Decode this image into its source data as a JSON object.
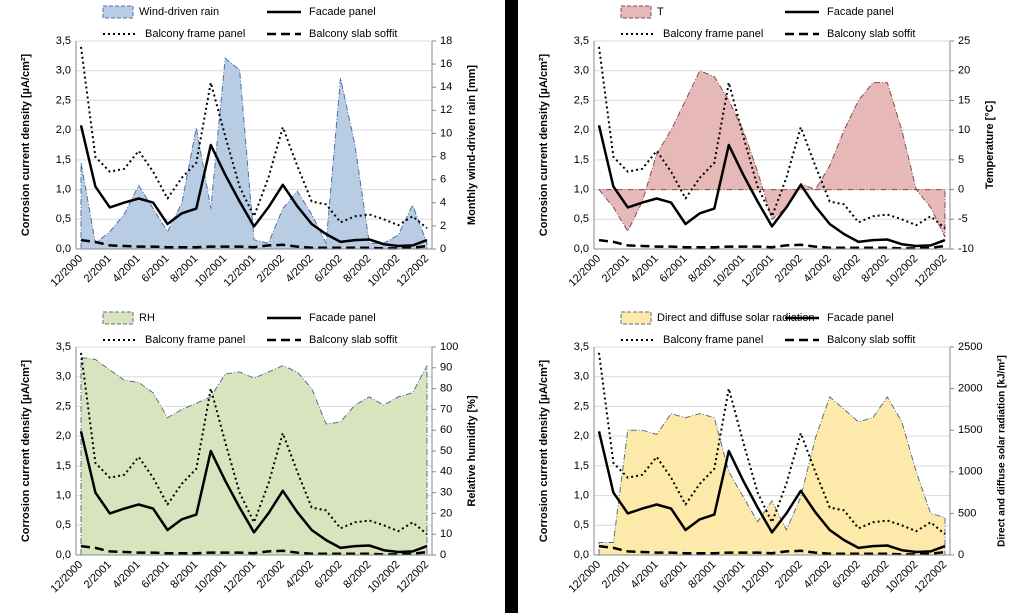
{
  "chart_data": [
    {
      "type": "line",
      "grid": true,
      "categories": [
        "12/2000",
        null,
        "2/2001",
        null,
        "4/2001",
        null,
        "6/2001",
        null,
        "8/2001",
        null,
        "10/2001",
        null,
        "12/2001",
        null,
        "2/2002",
        null,
        "4/2002",
        null,
        "6/2002",
        null,
        "8/2002",
        null,
        "10/2002",
        null,
        "12/2002"
      ],
      "y_label": "Corrosion current density [µA/cm²]",
      "y2_label": "Monthly wind-driven rain [mm]",
      "ylim": [
        0,
        3.5
      ],
      "yticks": [
        {
          "value": 0,
          "label": "0,0"
        },
        {
          "value": 0.5,
          "label": "0,5"
        },
        {
          "value": 1,
          "label": "1,0"
        },
        {
          "value": 1.5,
          "label": "1,5"
        },
        {
          "value": 2,
          "label": "2,0"
        },
        {
          "value": 2.5,
          "label": "2,5"
        },
        {
          "value": 3,
          "label": "3,0"
        },
        {
          "value": 3.5,
          "label": "3,5"
        }
      ],
      "y2lim": [
        0,
        18
      ],
      "y2ticks": [
        0,
        2,
        4,
        6,
        8,
        10,
        12,
        14,
        16,
        18
      ],
      "series": [
        {
          "name": "Wind-driven rain",
          "area": true,
          "axis": "y2",
          "color": "#b8cce4",
          "edge_color": "#4f6fa8",
          "values": [
            7.5,
            0.5,
            1.5,
            3,
            5.5,
            3.5,
            1.5,
            4,
            10.5,
            3.5,
            16.5,
            15.5,
            0.8,
            0.5,
            3.5,
            5,
            3,
            0.5,
            14.8,
            9,
            0.5,
            0.5,
            1.2,
            3.8,
            0.5
          ]
        },
        {
          "name": "Facade panel",
          "line_style": "solid",
          "color": "#000000",
          "values": [
            2.08,
            1.05,
            0.7,
            0.78,
            0.85,
            0.78,
            0.42,
            0.6,
            0.68,
            1.75,
            1.25,
            0.8,
            0.38,
            0.7,
            1.08,
            0.72,
            0.42,
            0.25,
            0.12,
            0.15,
            0.16,
            0.08,
            0.05,
            0.06,
            0.15
          ]
        },
        {
          "name": "Balcony frame panel",
          "line_style": "dotted",
          "color": "#000000",
          "values": [
            3.4,
            1.55,
            1.3,
            1.35,
            1.65,
            1.3,
            0.85,
            1.2,
            1.45,
            2.8,
            1.9,
            1.05,
            0.55,
            1.2,
            2.05,
            1.4,
            0.8,
            0.75,
            0.45,
            0.55,
            0.58,
            0.5,
            0.4,
            0.55,
            0.35
          ]
        },
        {
          "name": "Balcony slab soffit",
          "line_style": "dashed",
          "color": "#000000",
          "values": [
            0.15,
            0.12,
            0.06,
            0.05,
            0.04,
            0.04,
            0.03,
            0.03,
            0.03,
            0.04,
            0.04,
            0.04,
            0.03,
            0.06,
            0.07,
            0.04,
            0.02,
            0.02,
            0.02,
            0.02,
            0.02,
            0.01,
            0.01,
            0.02,
            0.05
          ]
        }
      ]
    },
    {
      "type": "line",
      "grid": true,
      "categories": [
        "12/2000",
        null,
        "2/2001",
        null,
        "4/2001",
        null,
        "6/2001",
        null,
        "8/2001",
        null,
        "10/2001",
        null,
        "12/2001",
        null,
        "2/2002",
        null,
        "4/2002",
        null,
        "6/2002",
        null,
        "8/2002",
        null,
        "10/2002",
        null,
        "12/2002"
      ],
      "y_label": "Corrosion current density [µA/cm²]",
      "y2_label": "Temperature [°C]",
      "ylim": [
        0,
        3.5
      ],
      "yticks": [
        {
          "value": 0,
          "label": "0,0"
        },
        {
          "value": 0.5,
          "label": "0,5"
        },
        {
          "value": 1,
          "label": "1,0"
        },
        {
          "value": 1.5,
          "label": "1,5"
        },
        {
          "value": 2,
          "label": "2,0"
        },
        {
          "value": 2.5,
          "label": "2,5"
        },
        {
          "value": 3,
          "label": "3,0"
        },
        {
          "value": 3.5,
          "label": "3,5"
        }
      ],
      "y2lim": [
        -10,
        25
      ],
      "y2ticks": [
        -10,
        -5,
        0,
        5,
        10,
        15,
        20,
        25
      ],
      "series": [
        {
          "name": "T",
          "area": true,
          "axis": "y2",
          "color": "#e6b9b8",
          "edge_color": "#8a4a4a",
          "values": [
            0,
            -3,
            -7,
            -2,
            6,
            10,
            15,
            20,
            19,
            15,
            10,
            3,
            -5,
            -3,
            1,
            0,
            4,
            10,
            15,
            18,
            18,
            10,
            0,
            -3,
            -8
          ]
        },
        {
          "name": "Facade panel",
          "line_style": "solid",
          "color": "#000000",
          "values": [
            2.08,
            1.05,
            0.7,
            0.78,
            0.85,
            0.78,
            0.42,
            0.6,
            0.68,
            1.75,
            1.25,
            0.8,
            0.38,
            0.7,
            1.08,
            0.72,
            0.42,
            0.25,
            0.12,
            0.15,
            0.16,
            0.08,
            0.05,
            0.06,
            0.15
          ]
        },
        {
          "name": "Balcony frame panel",
          "line_style": "dotted",
          "color": "#000000",
          "values": [
            3.4,
            1.55,
            1.3,
            1.35,
            1.65,
            1.3,
            0.85,
            1.2,
            1.45,
            2.8,
            1.9,
            1.05,
            0.55,
            1.2,
            2.05,
            1.4,
            0.8,
            0.75,
            0.45,
            0.55,
            0.58,
            0.5,
            0.4,
            0.55,
            0.35
          ]
        },
        {
          "name": "Balcony slab soffit",
          "line_style": "dashed",
          "color": "#000000",
          "values": [
            0.15,
            0.12,
            0.06,
            0.05,
            0.04,
            0.04,
            0.03,
            0.03,
            0.03,
            0.04,
            0.04,
            0.04,
            0.03,
            0.06,
            0.07,
            0.04,
            0.02,
            0.02,
            0.02,
            0.02,
            0.02,
            0.01,
            0.01,
            0.02,
            0.05
          ]
        }
      ]
    },
    {
      "type": "line",
      "grid": true,
      "categories": [
        "12/2000",
        null,
        "2/2001",
        null,
        "4/2001",
        null,
        "6/2001",
        null,
        "8/2001",
        null,
        "10/2001",
        null,
        "12/2001",
        null,
        "2/2002",
        null,
        "4/2002",
        null,
        "6/2002",
        null,
        "8/2002",
        null,
        "10/2002",
        null,
        "12/2002"
      ],
      "y_label": "Corrosion current density [µA/cm²]",
      "y2_label": "Relative humidity [%]",
      "ylim": [
        0,
        3.5
      ],
      "yticks": [
        {
          "value": 0,
          "label": "0,0"
        },
        {
          "value": 0.5,
          "label": "0,5"
        },
        {
          "value": 1,
          "label": "1,0"
        },
        {
          "value": 1.5,
          "label": "1,5"
        },
        {
          "value": 2,
          "label": "2,0"
        },
        {
          "value": 2.5,
          "label": "2,5"
        },
        {
          "value": 3,
          "label": "3,0"
        },
        {
          "value": 3.5,
          "label": "3,5"
        }
      ],
      "y2lim": [
        0,
        100
      ],
      "y2ticks": [
        0,
        10,
        20,
        30,
        40,
        50,
        60,
        70,
        80,
        90,
        100
      ],
      "series": [
        {
          "name": "RH",
          "area": true,
          "axis": "y2",
          "color": "#d7e4bd",
          "edge_color": "#5a6e8a",
          "values": [
            95,
            94,
            89,
            84,
            83,
            78,
            66,
            70,
            73,
            76,
            87,
            88,
            85,
            88,
            91,
            88,
            80,
            63,
            64,
            72,
            76,
            72,
            76,
            78,
            91
          ]
        },
        {
          "name": "Facade panel",
          "line_style": "solid",
          "color": "#000000",
          "values": [
            2.08,
            1.05,
            0.7,
            0.78,
            0.85,
            0.78,
            0.42,
            0.6,
            0.68,
            1.75,
            1.25,
            0.8,
            0.38,
            0.7,
            1.08,
            0.72,
            0.42,
            0.25,
            0.12,
            0.15,
            0.16,
            0.08,
            0.05,
            0.06,
            0.15
          ]
        },
        {
          "name": "Balcony frame panel",
          "line_style": "dotted",
          "color": "#000000",
          "values": [
            3.4,
            1.55,
            1.3,
            1.35,
            1.65,
            1.3,
            0.85,
            1.2,
            1.45,
            2.8,
            1.9,
            1.05,
            0.55,
            1.2,
            2.05,
            1.4,
            0.8,
            0.75,
            0.45,
            0.55,
            0.58,
            0.5,
            0.4,
            0.55,
            0.35
          ]
        },
        {
          "name": "Balcony slab soffit",
          "line_style": "dashed",
          "color": "#000000",
          "values": [
            0.15,
            0.12,
            0.06,
            0.05,
            0.04,
            0.04,
            0.03,
            0.03,
            0.03,
            0.04,
            0.04,
            0.04,
            0.03,
            0.06,
            0.07,
            0.04,
            0.02,
            0.02,
            0.02,
            0.02,
            0.02,
            0.01,
            0.01,
            0.02,
            0.05
          ]
        }
      ]
    },
    {
      "type": "line",
      "grid": true,
      "categories": [
        "12/2000",
        null,
        "2/2001",
        null,
        "4/2001",
        null,
        "6/2001",
        null,
        "8/2001",
        null,
        "10/2001",
        null,
        "12/2001",
        null,
        "2/2002",
        null,
        "4/2002",
        null,
        "6/2002",
        null,
        "8/2002",
        null,
        "10/2002",
        null,
        "12/2002"
      ],
      "y_label": "Corrosion current density [µA/cm²]",
      "y2_label": "Direct and diffuse solar radiation [kJ/m²]",
      "ylim": [
        0,
        3.5
      ],
      "yticks": [
        {
          "value": 0,
          "label": "0,0"
        },
        {
          "value": 0.5,
          "label": "0,5"
        },
        {
          "value": 1,
          "label": "1,0"
        },
        {
          "value": 1.5,
          "label": "1,5"
        },
        {
          "value": 2,
          "label": "2,0"
        },
        {
          "value": 2.5,
          "label": "2,5"
        },
        {
          "value": 3,
          "label": "3,0"
        },
        {
          "value": 3.5,
          "label": "3,5"
        }
      ],
      "y2lim": [
        0,
        2500
      ],
      "y2ticks": [
        0,
        500,
        1000,
        1500,
        2000,
        2500
      ],
      "series": [
        {
          "name": "Direct and diffuse solar radiation",
          "area": true,
          "axis": "y2",
          "color": "#fde9a9",
          "edge_color": "#5a6e8a",
          "values": [
            150,
            150,
            1500,
            1500,
            1450,
            1700,
            1650,
            1700,
            1650,
            1000,
            700,
            400,
            650,
            300,
            700,
            1400,
            1900,
            1750,
            1600,
            1650,
            1900,
            1600,
            1000,
            500,
            450
          ]
        },
        {
          "name": "Facade panel",
          "line_style": "solid",
          "color": "#000000",
          "values": [
            2.08,
            1.05,
            0.7,
            0.78,
            0.85,
            0.78,
            0.42,
            0.6,
            0.68,
            1.75,
            1.25,
            0.8,
            0.38,
            0.7,
            1.08,
            0.72,
            0.42,
            0.25,
            0.12,
            0.15,
            0.16,
            0.08,
            0.05,
            0.06,
            0.15
          ]
        },
        {
          "name": "Balcony frame panel",
          "line_style": "dotted",
          "color": "#000000",
          "values": [
            3.4,
            1.55,
            1.3,
            1.35,
            1.65,
            1.3,
            0.85,
            1.2,
            1.45,
            2.8,
            1.9,
            1.05,
            0.55,
            1.2,
            2.05,
            1.4,
            0.8,
            0.75,
            0.45,
            0.55,
            0.58,
            0.5,
            0.4,
            0.55,
            0.35
          ]
        },
        {
          "name": "Balcony slab soffit",
          "line_style": "dashed",
          "color": "#000000",
          "values": [
            0.15,
            0.12,
            0.06,
            0.05,
            0.04,
            0.04,
            0.03,
            0.03,
            0.03,
            0.04,
            0.04,
            0.04,
            0.03,
            0.06,
            0.07,
            0.04,
            0.02,
            0.02,
            0.02,
            0.02,
            0.02,
            0.01,
            0.01,
            0.02,
            0.05
          ]
        }
      ]
    }
  ]
}
